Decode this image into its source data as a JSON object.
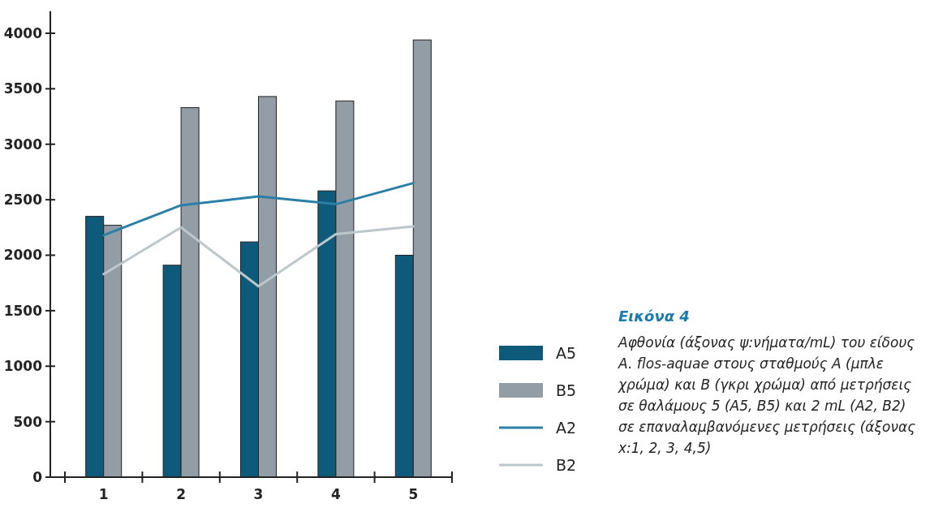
{
  "chart_data": {
    "type": "bar",
    "title": "Εικόνα 4",
    "annotations": [
      "Αφθονία (άξονας ψ:νήματα/mL) του είδους A. flos-aquae στους σταθμούς A (μπλε χρώμα) και B (γκρι χρώμα) από μετρήσεις σε θαλάμους 5 (A5, B5) και 2 mL (A2, B2) σε επαναλαμβανόμενες μετρήσεις (άξονας x:1, 2, 3, 4,5)"
    ],
    "categories": [
      "1",
      "2",
      "3",
      "4",
      "5"
    ],
    "series": [
      {
        "name": "A5",
        "color": "#0d5a7a",
        "values": [
          2350,
          1910,
          2120,
          2580,
          2000
        ]
      },
      {
        "name": "B5",
        "color": "#929da5",
        "values": [
          2270,
          3330,
          3430,
          3390,
          3940
        ]
      },
      {
        "name": "A2",
        "type": "line",
        "color": "#2a7fa6",
        "values": [
          2180,
          2450,
          2530,
          2460,
          2650
        ]
      },
      {
        "name": "B2",
        "type": "line",
        "color": "#bcc7cc",
        "values": [
          1830,
          2250,
          1720,
          2190,
          2260
        ]
      }
    ],
    "ylim": [
      0,
      4200
    ],
    "yticks": [
      0,
      500,
      1000,
      1500,
      2000,
      2500,
      3000,
      3500,
      4000
    ],
    "grid": false,
    "legend": "right"
  }
}
